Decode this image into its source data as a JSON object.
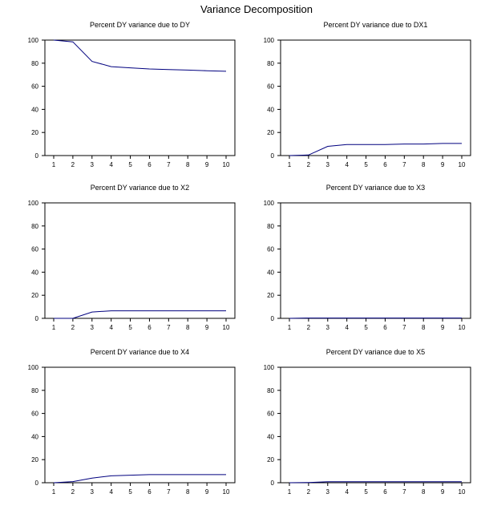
{
  "figure": {
    "title": "Variance Decomposition"
  },
  "chart_data": [
    {
      "type": "line",
      "title": "Percent DY variance due to DY",
      "x": [
        1,
        2,
        3,
        4,
        5,
        6,
        7,
        8,
        9,
        10
      ],
      "ylim": [
        0,
        100
      ],
      "y_ticks": [
        0,
        20,
        40,
        60,
        80,
        100
      ],
      "series": [
        {
          "values": [
            100,
            98.5,
            81.5,
            77,
            76,
            75,
            74.5,
            74,
            73.5,
            73
          ]
        }
      ]
    },
    {
      "type": "line",
      "title": "Percent DY variance due to DX1",
      "x": [
        1,
        2,
        3,
        4,
        5,
        6,
        7,
        8,
        9,
        10
      ],
      "ylim": [
        0,
        100
      ],
      "y_ticks": [
        0,
        20,
        40,
        60,
        80,
        100
      ],
      "series": [
        {
          "values": [
            0,
            0.5,
            8,
            9.5,
            9.5,
            9.5,
            10,
            10,
            10.5,
            10.5
          ]
        }
      ]
    },
    {
      "type": "line",
      "title": "Percent DY variance due to X2",
      "x": [
        1,
        2,
        3,
        4,
        5,
        6,
        7,
        8,
        9,
        10
      ],
      "ylim": [
        0,
        100
      ],
      "y_ticks": [
        0,
        20,
        40,
        60,
        80,
        100
      ],
      "series": [
        {
          "values": [
            0,
            0,
            5.5,
            6.5,
            6.5,
            6.5,
            6.5,
            6.5,
            6.5,
            6.5
          ]
        }
      ]
    },
    {
      "type": "line",
      "title": "Percent DY variance due to X3",
      "x": [
        1,
        2,
        3,
        4,
        5,
        6,
        7,
        8,
        9,
        10
      ],
      "ylim": [
        0,
        100
      ],
      "y_ticks": [
        0,
        20,
        40,
        60,
        80,
        100
      ],
      "series": [
        {
          "values": [
            0,
            0.3,
            0.3,
            0.3,
            0.3,
            0.3,
            0.3,
            0.3,
            0.3,
            0.3
          ]
        }
      ]
    },
    {
      "type": "line",
      "title": "Percent DY variance due to X4",
      "x": [
        1,
        2,
        3,
        4,
        5,
        6,
        7,
        8,
        9,
        10
      ],
      "ylim": [
        0,
        100
      ],
      "y_ticks": [
        0,
        20,
        40,
        60,
        80,
        100
      ],
      "series": [
        {
          "values": [
            0,
            1,
            4,
            6,
            6.5,
            7,
            7,
            7,
            7,
            7
          ]
        }
      ]
    },
    {
      "type": "line",
      "title": "Percent DY variance due to X5",
      "x": [
        1,
        2,
        3,
        4,
        5,
        6,
        7,
        8,
        9,
        10
      ],
      "ylim": [
        0,
        100
      ],
      "y_ticks": [
        0,
        20,
        40,
        60,
        80,
        100
      ],
      "series": [
        {
          "values": [
            0,
            0.2,
            0.8,
            0.8,
            0.8,
            0.8,
            0.8,
            0.8,
            0.8,
            0.8
          ]
        }
      ]
    }
  ]
}
